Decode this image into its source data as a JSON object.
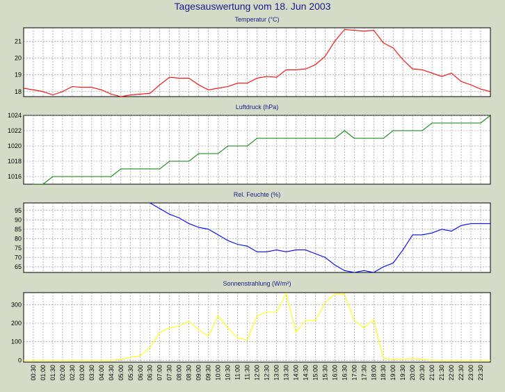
{
  "title": "Tagesauswertung vom 18. Jun 2003",
  "x_ticks": [
    "00:30",
    "01:00",
    "01:30",
    "02:00",
    "02:30",
    "03:00",
    "03:30",
    "04:00",
    "04:30",
    "05:00",
    "05:30",
    "06:00",
    "06:30",
    "07:00",
    "07:30",
    "08:00",
    "08:30",
    "09:00",
    "09:30",
    "10:00",
    "10:30",
    "11:00",
    "11:30",
    "12:00",
    "12:30",
    "13:00",
    "13:30",
    "14:00",
    "14:30",
    "15:00",
    "15:30",
    "16:00",
    "16:30",
    "17:00",
    "17:30",
    "18:00",
    "18:30",
    "19:00",
    "19:30",
    "20:00",
    "20:30",
    "21:00",
    "21:30",
    "22:00",
    "22:30",
    "23:00",
    "23:30"
  ],
  "colors": {
    "background": "#d4dcc8",
    "plot_bg": "#ffffff",
    "grid": "#7f7f7f",
    "title": "#1a1a8c"
  },
  "chart_data": [
    {
      "type": "line",
      "title": "Temperatur (°C)",
      "color": "#ff0000",
      "ylim": [
        17.7,
        21.8
      ],
      "yticks": [
        18,
        19,
        20,
        21
      ],
      "x": [
        "00:00",
        "00:30",
        "01:00",
        "01:30",
        "02:00",
        "02:30",
        "03:00",
        "03:30",
        "04:00",
        "04:30",
        "05:00",
        "05:30",
        "06:00",
        "06:30",
        "07:00",
        "07:30",
        "08:00",
        "08:30",
        "09:00",
        "09:30",
        "10:00",
        "10:30",
        "11:00",
        "11:30",
        "12:00",
        "12:30",
        "13:00",
        "13:30",
        "14:00",
        "14:30",
        "15:00",
        "15:30",
        "16:00",
        "16:30",
        "17:00",
        "17:30",
        "18:00",
        "18:30",
        "19:00",
        "19:30",
        "20:00",
        "20:30",
        "21:00",
        "21:30",
        "22:00",
        "22:30",
        "23:00",
        "23:30",
        "24:00"
      ],
      "values": [
        18.2,
        18.1,
        18.0,
        17.8,
        18.0,
        18.3,
        18.25,
        18.25,
        18.1,
        17.85,
        17.7,
        17.8,
        17.85,
        17.9,
        18.4,
        18.85,
        18.8,
        18.8,
        18.4,
        18.1,
        18.2,
        18.3,
        18.5,
        18.5,
        18.8,
        18.9,
        18.85,
        19.3,
        19.3,
        19.35,
        19.6,
        20.1,
        21.0,
        21.7,
        21.65,
        21.6,
        21.65,
        20.9,
        20.6,
        19.9,
        19.35,
        19.3,
        19.1,
        18.9,
        19.1,
        18.6,
        18.4,
        18.15,
        18.0
      ]
    },
    {
      "type": "line",
      "title": "Luftdruck (hPa)",
      "color": "#007f00",
      "ylim": [
        1015,
        1024
      ],
      "yticks": [
        1016,
        1018,
        1020,
        1022,
        1024
      ],
      "x": [
        "00:00",
        "00:30",
        "01:00",
        "01:30",
        "02:00",
        "02:30",
        "03:00",
        "03:30",
        "04:00",
        "04:30",
        "05:00",
        "05:30",
        "06:00",
        "06:30",
        "07:00",
        "07:30",
        "08:00",
        "08:30",
        "09:00",
        "09:30",
        "10:00",
        "10:30",
        "11:00",
        "11:30",
        "12:00",
        "12:30",
        "13:00",
        "13:30",
        "14:00",
        "14:30",
        "15:00",
        "15:30",
        "16:00",
        "16:30",
        "17:00",
        "17:30",
        "18:00",
        "18:30",
        "19:00",
        "19:30",
        "20:00",
        "20:30",
        "21:00",
        "21:30",
        "22:00",
        "22:30",
        "23:00",
        "23:30",
        "24:00"
      ],
      "values": [
        1014.5,
        1015,
        1015,
        1016,
        1016,
        1016,
        1016,
        1016,
        1016,
        1016,
        1017,
        1017,
        1017,
        1017,
        1017,
        1018,
        1018,
        1018,
        1019,
        1019,
        1019,
        1020,
        1020,
        1020,
        1021,
        1021,
        1021,
        1021,
        1021,
        1021,
        1021,
        1021,
        1021,
        1022,
        1021,
        1021,
        1021,
        1021,
        1022,
        1022,
        1022,
        1022,
        1023,
        1023,
        1023,
        1023,
        1023,
        1023,
        1024
      ]
    },
    {
      "type": "line",
      "title": "Rel. Feuchte (%)",
      "color": "#0000ff",
      "ylim": [
        62,
        99
      ],
      "yticks": [
        65,
        70,
        75,
        80,
        85,
        90,
        95
      ],
      "x": [
        "06:30",
        "07:00",
        "07:30",
        "08:00",
        "08:30",
        "09:00",
        "09:30",
        "10:00",
        "10:30",
        "11:00",
        "11:30",
        "12:00",
        "12:30",
        "13:00",
        "13:30",
        "14:00",
        "14:30",
        "15:00",
        "15:30",
        "16:00",
        "16:30",
        "17:00",
        "17:30",
        "18:00",
        "18:30",
        "19:00",
        "19:30",
        "20:00",
        "20:30",
        "21:00",
        "21:30",
        "22:00",
        "22:30",
        "23:00",
        "23:30",
        "24:00"
      ],
      "values": [
        99,
        96,
        93,
        91,
        88,
        86,
        85,
        82,
        79,
        77,
        76,
        73,
        73,
        74,
        73,
        74,
        74,
        72,
        70,
        66,
        63,
        62,
        63,
        62,
        65,
        67,
        74,
        82,
        82,
        83,
        85,
        84,
        87,
        88,
        88,
        88
      ]
    },
    {
      "type": "area",
      "title": "Sonnenstrahlung (W/m²)",
      "color": "#ffff00",
      "ylim": [
        -10,
        365
      ],
      "yticks": [
        0,
        100,
        200,
        300
      ],
      "x": [
        "00:00",
        "00:30",
        "01:00",
        "01:30",
        "02:00",
        "02:30",
        "03:00",
        "03:30",
        "04:00",
        "04:30",
        "05:00",
        "05:30",
        "06:00",
        "06:30",
        "07:00",
        "07:30",
        "08:00",
        "08:30",
        "09:00",
        "09:30",
        "10:00",
        "10:30",
        "11:00",
        "11:30",
        "12:00",
        "12:30",
        "13:00",
        "13:30",
        "14:00",
        "14:30",
        "15:00",
        "15:30",
        "16:00",
        "16:30",
        "17:00",
        "17:30",
        "18:00",
        "18:30",
        "19:00",
        "19:30",
        "20:00",
        "20:30",
        "21:00",
        "21:30",
        "22:00",
        "22:30",
        "23:00",
        "23:30",
        "24:00"
      ],
      "values": [
        0,
        0,
        0,
        0,
        0,
        0,
        0,
        0,
        0,
        0,
        5,
        15,
        25,
        70,
        150,
        175,
        185,
        210,
        165,
        130,
        240,
        175,
        120,
        110,
        240,
        260,
        260,
        360,
        150,
        215,
        215,
        310,
        360,
        355,
        215,
        175,
        220,
        10,
        5,
        5,
        10,
        5,
        0,
        0,
        0,
        0,
        0,
        0,
        0
      ]
    }
  ]
}
